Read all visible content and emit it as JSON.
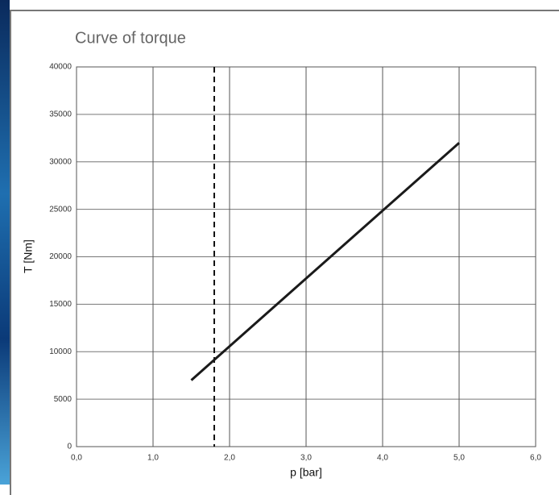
{
  "chart_data": {
    "type": "line",
    "title": "Curve of torque",
    "x_label": "p [bar]",
    "y_label": "T [Nm]",
    "x": [
      1.5,
      5.0
    ],
    "values": [
      7000,
      32000
    ],
    "color": "#1a1a1a",
    "reference_x": 1.8,
    "xlim": [
      0,
      6
    ],
    "xticks": [
      {
        "value": 0,
        "label": "0,0"
      },
      {
        "value": 1,
        "label": "1,0"
      },
      {
        "value": 2,
        "label": "2,0"
      },
      {
        "value": 3,
        "label": "3,0"
      },
      {
        "value": 4,
        "label": "4,0"
      },
      {
        "value": 5,
        "label": "5,0"
      },
      {
        "value": 6,
        "label": "6,0"
      }
    ],
    "ylim": [
      0,
      40000
    ],
    "yticks": [
      0,
      5000,
      10000,
      15000,
      20000,
      25000,
      30000,
      35000,
      40000
    ],
    "grid": true
  }
}
